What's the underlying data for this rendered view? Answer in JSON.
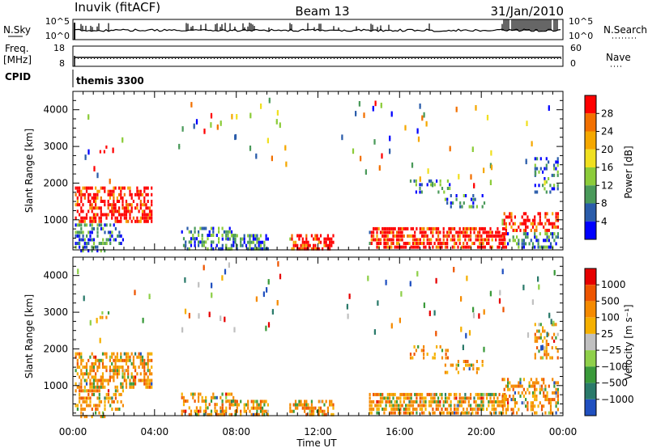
{
  "header": {
    "station": "Inuvik (fitACF)",
    "beam": "Beam 13",
    "date": "31/Jan/2010"
  },
  "strip_labels": {
    "nsky": "N.Sky",
    "nsky_ticks": [
      "10^5",
      "10^0"
    ],
    "nsearch": "N.Search",
    "nsearch_ticks": [
      "10^5",
      "10^0"
    ],
    "freq": "Freq.",
    "freq_unit": "[MHz]",
    "freq_ticks": [
      "18",
      "8"
    ],
    "nave": "Nave",
    "nave_ticks": [
      "60",
      "0"
    ],
    "cpid": "CPID",
    "cpid_value": "themis 3300"
  },
  "chart_data": [
    {
      "type": "heatmap",
      "name": "power-panel",
      "ylabel": "Slant Range [km]",
      "yticks": [
        "4000",
        "3000",
        "2000",
        "1000"
      ],
      "ylim": [
        180,
        4500
      ],
      "xlim": [
        0,
        24
      ],
      "colorbar_label": "Power [dB]",
      "colorbar_ticks": [
        "28",
        "24",
        "20",
        "16",
        "12",
        "8",
        "4"
      ],
      "colors": [
        "#0000ff",
        "#2a5caa",
        "#4a9a5a",
        "#8ccc3a",
        "#f0e020",
        "#f5a800",
        "#f27000",
        "#ff0000"
      ]
    },
    {
      "type": "heatmap",
      "name": "velocity-panel",
      "ylabel": "Slant Range [km]",
      "yticks": [
        "4000",
        "3000",
        "2000",
        "1000"
      ],
      "ylim": [
        180,
        4500
      ],
      "xlim": [
        0,
        24
      ],
      "colorbar_label": "Velocity [m s⁻¹]",
      "colorbar_ticks": [
        "1000",
        "500",
        "100",
        "25",
        "−25",
        "−100",
        "−500",
        "−1000"
      ],
      "colors": [
        "#2050c0",
        "#2a7a6a",
        "#3a9a3a",
        "#8fd04a",
        "#c0c0c0",
        "#f5b000",
        "#f58a00",
        "#ee5500",
        "#e60000"
      ]
    }
  ],
  "xaxis": {
    "label": "Time UT",
    "ticks": [
      "00:00",
      "04:00",
      "08:00",
      "12:00",
      "16:00",
      "20:00",
      "00:00"
    ]
  },
  "colors": {
    "power_red": "#ff0000",
    "velocity_orange": "#f58a00",
    "axis": "#000000"
  }
}
